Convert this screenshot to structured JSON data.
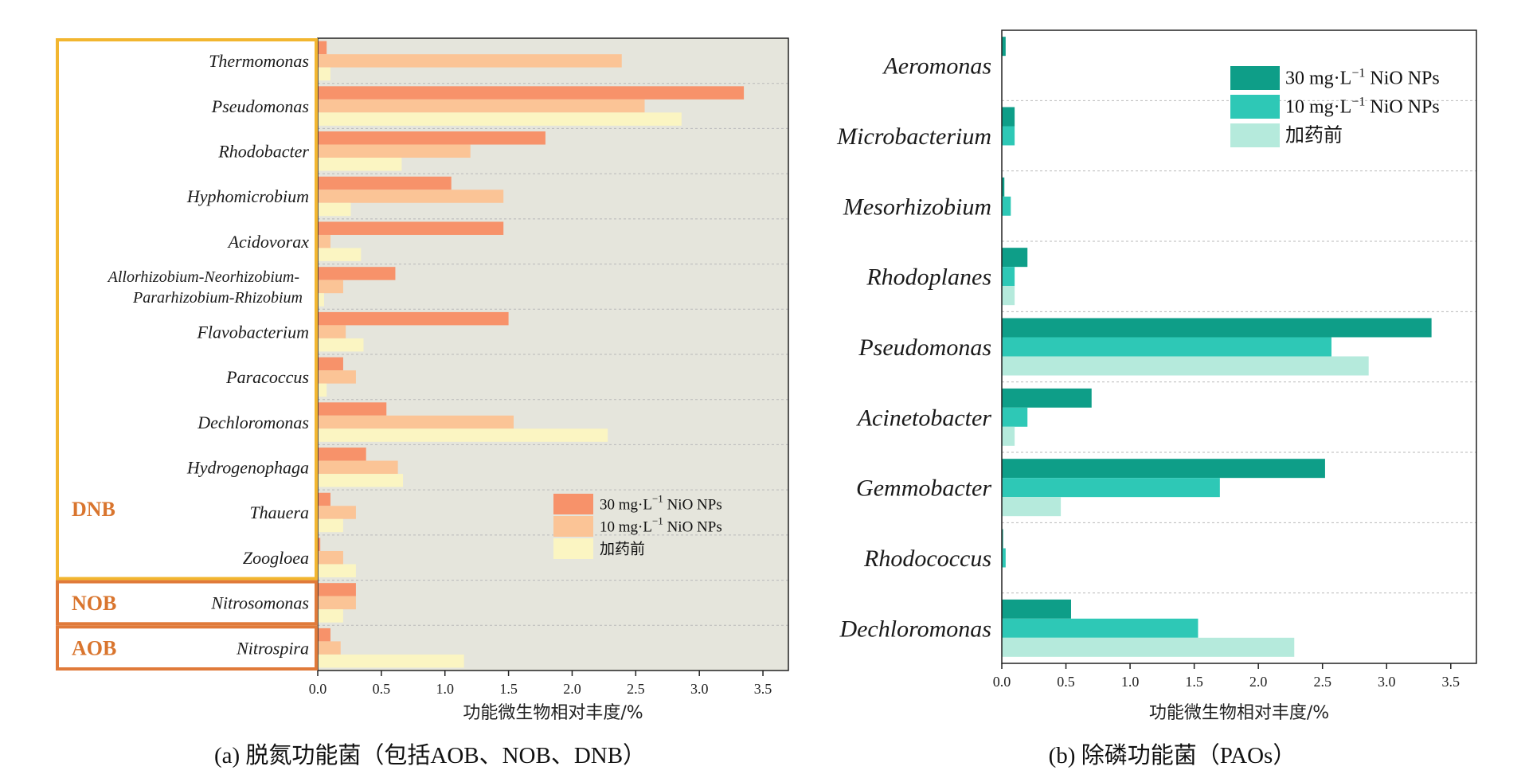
{
  "colors": {
    "dnb_box": "#f2b630",
    "nob_aob_box": "#e07a3a",
    "group_label": "#d9752e",
    "panel_a_bg": "#e5e5dc",
    "panel_b_bg": "#ffffff",
    "orange_30": "#f7926a",
    "orange_10": "#fbc496",
    "orange_before": "#fbf5c2",
    "teal_30": "#0e9e88",
    "teal_10": "#2ec8b6",
    "teal_before": "#b5eadc"
  },
  "charts": [
    {
      "panel": "a",
      "chart_data": {
        "type": "bar",
        "orientation": "horizontal",
        "caption": "(a) 脱氮功能菌（包括AOB、NOB、DNB）",
        "xlabel": "功能微生物相对丰度/%",
        "xlim": [
          0,
          3.7
        ],
        "xticks": [
          "0.0",
          "0.5",
          "1.0",
          "1.5",
          "2.0",
          "2.5",
          "3.0",
          "3.5"
        ],
        "grid": "horizontal dashed",
        "legend_position": "right-lower",
        "groups": [
          {
            "label": "DNB",
            "from": 0,
            "to": 11
          },
          {
            "label": "NOB",
            "from": 12,
            "to": 12
          },
          {
            "label": "AOB",
            "from": 13,
            "to": 13
          }
        ],
        "categories": [
          [
            "Thermomonas"
          ],
          [
            "Pseudomonas"
          ],
          [
            "Rhodobacter"
          ],
          [
            "Hyphomicrobium"
          ],
          [
            "Acidovorax"
          ],
          [
            "Allorhizobium-Neorhizobium-",
            "Pararhizobium-Rhizobium"
          ],
          [
            "Flavobacterium"
          ],
          [
            "Paracoccus"
          ],
          [
            "Dechloromonas"
          ],
          [
            "Hydrogenophaga"
          ],
          [
            "Thauera"
          ],
          [
            "Zoogloea"
          ],
          [
            "Nitrosomonas"
          ],
          [
            "Nitrospira"
          ]
        ],
        "series": [
          {
            "name_main": "30 mg·L",
            "name_sup": "−1",
            "name_tail": " NiO NPs",
            "values": [
              0.07,
              3.35,
              1.79,
              1.05,
              1.46,
              0.61,
              1.5,
              0.2,
              0.54,
              0.38,
              0.1,
              0.02,
              0.3,
              0.1
            ]
          },
          {
            "name_main": "10 mg·L",
            "name_sup": "−1",
            "name_tail": " NiO NPs",
            "values": [
              2.39,
              2.57,
              1.2,
              1.46,
              0.1,
              0.2,
              0.22,
              0.3,
              1.54,
              0.63,
              0.3,
              0.2,
              0.3,
              0.18
            ]
          },
          {
            "name_main": "加药前",
            "name_sup": "",
            "name_tail": "",
            "values": [
              0.1,
              2.86,
              0.66,
              0.26,
              0.34,
              0.05,
              0.36,
              0.07,
              2.28,
              0.67,
              0.2,
              0.3,
              0.2,
              1.15
            ]
          }
        ]
      }
    },
    {
      "panel": "b",
      "chart_data": {
        "type": "bar",
        "orientation": "horizontal",
        "caption": "(b) 除磷功能菌（PAOs）",
        "xlabel": "功能微生物相对丰度/%",
        "xlim": [
          0,
          3.7
        ],
        "xticks": [
          "0.0",
          "0.5",
          "1.0",
          "1.5",
          "2.0",
          "2.5",
          "3.0",
          "3.5"
        ],
        "grid": "horizontal dashed",
        "legend_position": "top-right",
        "categories": [
          [
            "Aeromonas"
          ],
          [
            "Microbacterium"
          ],
          [
            "Mesorhizobium"
          ],
          [
            "Rhodoplanes"
          ],
          [
            "Pseudomonas"
          ],
          [
            "Acinetobacter"
          ],
          [
            "Gemmobacter"
          ],
          [
            "Rhodococcus"
          ],
          [
            "Dechloromonas"
          ]
        ],
        "series": [
          {
            "name_main": "30 mg·L",
            "name_sup": "−1",
            "name_tail": " NiO NPs",
            "values": [
              0.03,
              0.1,
              0.02,
              0.2,
              3.35,
              0.7,
              2.52,
              0.01,
              0.54
            ]
          },
          {
            "name_main": "10 mg·L",
            "name_sup": "−1",
            "name_tail": " NiO NPs",
            "values": [
              0.0,
              0.1,
              0.07,
              0.1,
              2.57,
              0.2,
              1.7,
              0.03,
              1.53
            ]
          },
          {
            "name_main": "加药前",
            "name_sup": "",
            "name_tail": "",
            "values": [
              0.0,
              0.0,
              0.0,
              0.1,
              2.86,
              0.1,
              0.46,
              0.0,
              2.28
            ]
          }
        ]
      }
    }
  ]
}
